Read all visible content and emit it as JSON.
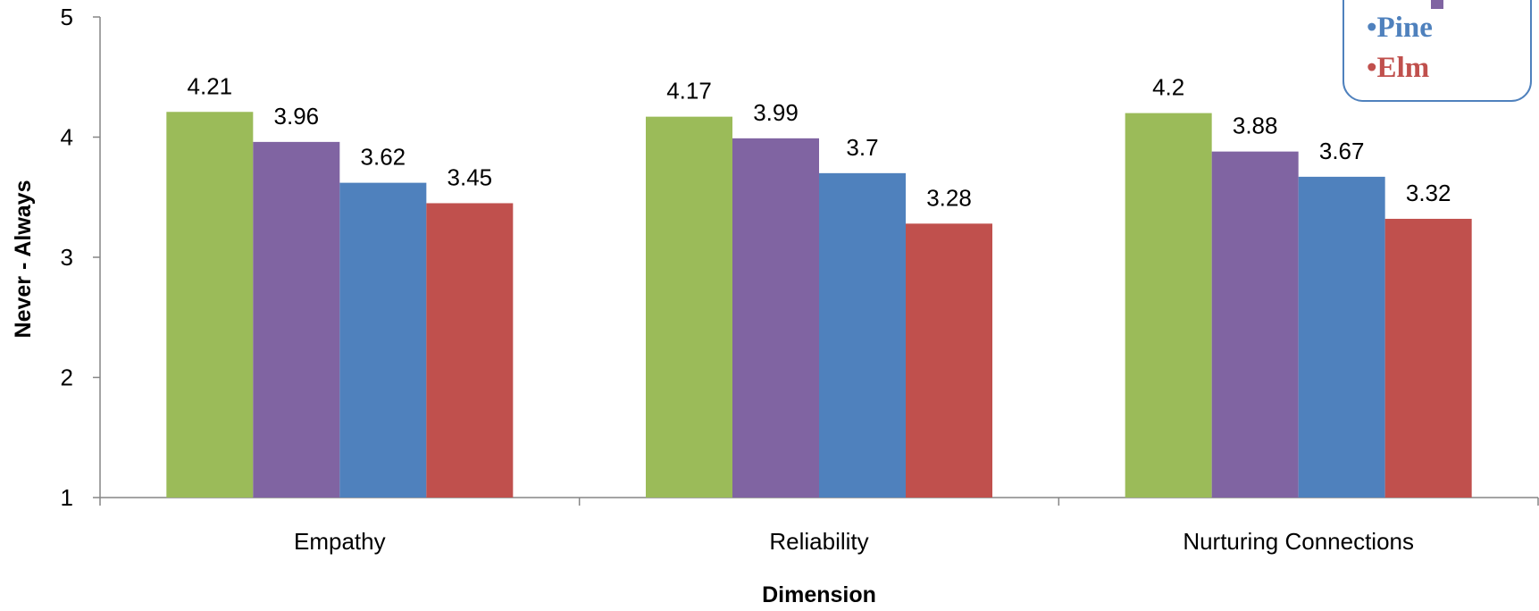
{
  "chart_data": {
    "type": "bar",
    "categories": [
      "Empathy",
      "Reliability",
      "Nurturing Connections"
    ],
    "series": [
      {
        "values": [
          4.21,
          4.17,
          4.2
        ],
        "color": "#9BBB59"
      },
      {
        "values": [
          3.96,
          3.99,
          3.88
        ],
        "color": "#8064A2"
      },
      {
        "name": "Pine",
        "values": [
          3.62,
          3.7,
          3.67
        ],
        "color": "#4F81BD"
      },
      {
        "name": "Elm",
        "values": [
          3.45,
          3.28,
          3.32
        ],
        "color": "#C0504D"
      }
    ],
    "value_labels": [
      [
        "4.21",
        "4.17",
        "4.2"
      ],
      [
        "3.96",
        "3.99",
        "3.88"
      ],
      [
        "3.62",
        "3.7",
        "3.67"
      ],
      [
        "3.45",
        "3.28",
        "3.32"
      ]
    ],
    "xlabel": "Dimension",
    "ylabel": "Never - Always",
    "ylim": [
      1,
      5
    ],
    "yticks": [
      "1",
      "2",
      "3",
      "4",
      "5"
    ],
    "grid": false,
    "legend": {
      "placement": "top-right",
      "entries": [
        {
          "text": "•Pine",
          "color": "#4F81BD"
        },
        {
          "text": "•Elm",
          "color": "#C0504D"
        }
      ],
      "border_color": "#4F81BD"
    }
  }
}
